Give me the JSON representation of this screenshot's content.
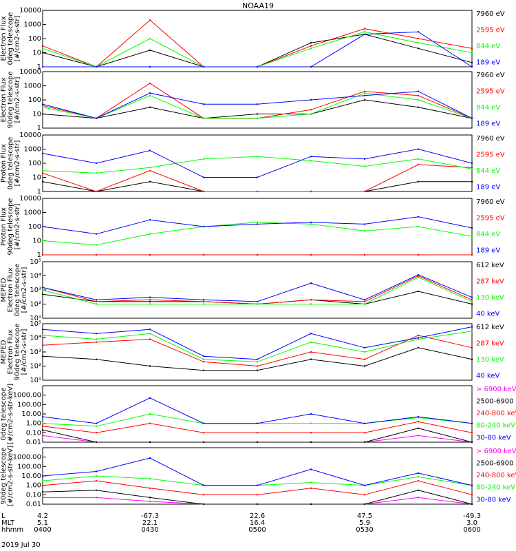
{
  "title": "NOAA19",
  "colors": {
    "black": "#000000",
    "red": "#ff0000",
    "green": "#00ff00",
    "blue": "#0000ff",
    "magenta": "#ff00ff"
  },
  "chart_data": [
    {
      "type": "line",
      "ylabel": [
        "Electron Flux",
        "0deg telescope",
        "[#/cm2-s-str]"
      ],
      "yscale": "log",
      "ylim": [
        1,
        10000
      ],
      "yticks": [
        {
          "v": 1,
          "t": "1"
        },
        {
          "v": 10,
          "t": "10"
        },
        {
          "v": 100,
          "t": "100"
        },
        {
          "v": 1000,
          "t": "1000"
        },
        {
          "v": 10000,
          "t": "10000"
        }
      ],
      "x": [
        "04:00",
        "04:15",
        "04:30",
        "04:45",
        "05:00",
        "05:15",
        "05:30",
        "05:45",
        "06:00"
      ],
      "series": [
        {
          "name": "7960 eV",
          "color": "#000000",
          "values": [
            10,
            1,
            15,
            1,
            1,
            50,
            200,
            20,
            2
          ]
        },
        {
          "name": "2595 eV",
          "color": "#ff0000",
          "values": [
            30,
            1,
            2000,
            1,
            1,
            30,
            500,
            100,
            20
          ]
        },
        {
          "name": "844 eV",
          "color": "#00ff00",
          "values": [
            20,
            1,
            100,
            1,
            1,
            20,
            300,
            50,
            10
          ]
        },
        {
          "name": "189 eV",
          "color": "#0000ff",
          "values": [
            1,
            1,
            1,
            1,
            1,
            1,
            200,
            300,
            1
          ]
        }
      ]
    },
    {
      "type": "line",
      "ylabel": [
        "Electron Flux",
        "90deg telescope",
        "[#/cm2-s-str]"
      ],
      "yscale": "log",
      "ylim": [
        1,
        10000
      ],
      "yticks": [
        {
          "v": 1,
          "t": "1"
        },
        {
          "v": 10,
          "t": "10"
        },
        {
          "v": 100,
          "t": "100"
        },
        {
          "v": 1000,
          "t": "1000"
        },
        {
          "v": 10000,
          "t": "10000"
        }
      ],
      "x": [
        "04:00",
        "04:15",
        "04:30",
        "04:45",
        "05:00",
        "05:15",
        "05:30",
        "05:45",
        "06:00"
      ],
      "series": [
        {
          "name": "7960 eV",
          "color": "#000000",
          "values": [
            10,
            5,
            30,
            5,
            10,
            10,
            100,
            30,
            5
          ]
        },
        {
          "name": "2595 eV",
          "color": "#ff0000",
          "values": [
            40,
            5,
            1500,
            5,
            5,
            20,
            400,
            200,
            5
          ]
        },
        {
          "name": "844 eV",
          "color": "#00ff00",
          "values": [
            30,
            5,
            200,
            5,
            5,
            10,
            300,
            100,
            5
          ]
        },
        {
          "name": "189 eV",
          "color": "#0000ff",
          "values": [
            50,
            5,
            300,
            50,
            50,
            100,
            200,
            400,
            5
          ]
        }
      ]
    },
    {
      "type": "line",
      "ylabel": [
        "Proton Flux",
        "0deg telescope",
        "[#/cm2-s-str]"
      ],
      "yscale": "log",
      "ylim": [
        1,
        10000
      ],
      "yticks": [
        {
          "v": 1,
          "t": "1"
        },
        {
          "v": 10,
          "t": "10"
        },
        {
          "v": 100,
          "t": "100"
        },
        {
          "v": 1000,
          "t": "1000"
        },
        {
          "v": 10000,
          "t": "10000"
        }
      ],
      "x": [
        "04:00",
        "04:15",
        "04:30",
        "04:45",
        "05:00",
        "05:15",
        "05:30",
        "05:45",
        "06:00"
      ],
      "series": [
        {
          "name": "7960 eV",
          "color": "#000000",
          "values": [
            5,
            1,
            5,
            1,
            1,
            1,
            1,
            5,
            5
          ]
        },
        {
          "name": "2595 eV",
          "color": "#ff0000",
          "values": [
            20,
            1,
            30,
            1,
            1,
            1,
            1,
            80,
            50
          ]
        },
        {
          "name": "844 eV",
          "color": "#00ff00",
          "values": [
            30,
            20,
            50,
            200,
            300,
            150,
            60,
            200,
            40
          ]
        },
        {
          "name": "189 eV",
          "color": "#0000ff",
          "values": [
            500,
            100,
            800,
            10,
            10,
            300,
            200,
            1000,
            100
          ]
        }
      ]
    },
    {
      "type": "line",
      "ylabel": [
        "Proton Flux",
        "90deg telescope",
        "[#/cm2-s-str]"
      ],
      "yscale": "log",
      "ylim": [
        1,
        10000
      ],
      "yticks": [
        {
          "v": 1,
          "t": "1"
        },
        {
          "v": 10,
          "t": "10"
        },
        {
          "v": 100,
          "t": "100"
        },
        {
          "v": 1000,
          "t": "1000"
        },
        {
          "v": 10000,
          "t": "10000"
        }
      ],
      "x": [
        "04:00",
        "04:15",
        "04:30",
        "04:45",
        "05:00",
        "05:15",
        "05:30",
        "05:45",
        "06:00"
      ],
      "series": [
        {
          "name": "7960 eV",
          "color": "#000000",
          "values": [
            1,
            1,
            1,
            1,
            1,
            1,
            1,
            1,
            1
          ]
        },
        {
          "name": "2595 eV",
          "color": "#ff0000",
          "values": [
            1,
            1,
            1,
            1,
            1,
            1,
            1,
            1,
            1
          ]
        },
        {
          "name": "844 eV",
          "color": "#00ff00",
          "values": [
            10,
            5,
            30,
            100,
            200,
            150,
            50,
            100,
            20
          ]
        },
        {
          "name": "189 eV",
          "color": "#0000ff",
          "values": [
            100,
            30,
            300,
            100,
            150,
            200,
            150,
            500,
            80
          ]
        }
      ]
    },
    {
      "type": "line",
      "ylabel": [
        "MEPED",
        "Electron Flux",
        "0deg telescope",
        "[#/cm2-s-str]"
      ],
      "yscale": "log",
      "ylim": [
        10,
        100000
      ],
      "yticks": [
        {
          "v": 10,
          "t": "10¹"
        },
        {
          "v": 100,
          "t": "10²"
        },
        {
          "v": 1000,
          "t": "10³"
        },
        {
          "v": 10000,
          "t": "10⁴"
        },
        {
          "v": 100000,
          "t": "10⁵"
        }
      ],
      "x": [
        "04:00",
        "04:15",
        "04:30",
        "04:45",
        "05:00",
        "05:15",
        "05:30",
        "05:45",
        "06:00"
      ],
      "series": [
        {
          "name": "612 keV",
          "color": "#000000",
          "values": [
            500,
            150,
            150,
            150,
            100,
            200,
            100,
            800,
            100
          ]
        },
        {
          "name": "287 keV",
          "color": "#ff0000",
          "values": [
            1500,
            150,
            200,
            150,
            100,
            200,
            150,
            10000,
            200
          ]
        },
        {
          "name": "130 keV",
          "color": "#00ff00",
          "values": [
            1000,
            100,
            100,
            100,
            100,
            100,
            100,
            8000,
            150
          ]
        },
        {
          "name": "40 keV",
          "color": "#0000ff",
          "values": [
            1500,
            200,
            300,
            200,
            150,
            3000,
            200,
            12000,
            300
          ]
        }
      ]
    },
    {
      "type": "line",
      "ylabel": [
        "MEPED",
        "Electron Flux",
        "90deg telescope",
        "[#/cm2-s-str]"
      ],
      "yscale": "log",
      "ylim": [
        10,
        100000
      ],
      "yticks": [
        {
          "v": 10,
          "t": "10¹"
        },
        {
          "v": 100,
          "t": "10²"
        },
        {
          "v": 1000,
          "t": "10³"
        },
        {
          "v": 10000,
          "t": "10⁴"
        },
        {
          "v": 100000,
          "t": "10⁵"
        }
      ],
      "x": [
        "04:00",
        "04:15",
        "04:30",
        "04:45",
        "05:00",
        "05:15",
        "05:30",
        "05:45",
        "06:00"
      ],
      "series": [
        {
          "name": "612 keV",
          "color": "#000000",
          "values": [
            500,
            300,
            100,
            50,
            50,
            300,
            100,
            2000,
            300
          ]
        },
        {
          "name": "287 keV",
          "color": "#ff0000",
          "values": [
            3000,
            5000,
            8000,
            200,
            100,
            1000,
            300,
            15000,
            2000
          ]
        },
        {
          "name": "130 keV",
          "color": "#00ff00",
          "values": [
            15000,
            8000,
            20000,
            300,
            200,
            5000,
            1000,
            8000,
            30000
          ]
        },
        {
          "name": "40 keV",
          "color": "#0000ff",
          "values": [
            40000,
            20000,
            40000,
            500,
            300,
            20000,
            2000,
            10000,
            60000
          ]
        }
      ]
    },
    {
      "type": "line",
      "ylabel": [
        "0deg telescope",
        "[#/cm2-s-str-keV]"
      ],
      "yscale": "log",
      "ylim": [
        0.01,
        10000
      ],
      "yticks": [
        {
          "v": 0.01,
          "t": "0.01"
        },
        {
          "v": 0.1,
          "t": "0.10"
        },
        {
          "v": 1,
          "t": "1.00"
        },
        {
          "v": 10,
          "t": "10.00"
        },
        {
          "v": 100,
          "t": "100.00"
        },
        {
          "v": 1000,
          "t": "1000.00"
        }
      ],
      "x": [
        "04:00",
        "04:15",
        "04:30",
        "04:45",
        "05:00",
        "05:15",
        "05:30",
        "05:45",
        "06:00"
      ],
      "series": [
        {
          "name": "> 6900 keV",
          "color": "#ff00ff",
          "values": [
            0.05,
            0.01,
            0.01,
            0.01,
            0.01,
            0.01,
            0.01,
            0.05,
            0.01
          ]
        },
        {
          "name": "2500-6900",
          "color": "#000000",
          "values": [
            0.2,
            0.01,
            0.01,
            0.01,
            0.01,
            0.01,
            0.01,
            0.3,
            0.01
          ]
        },
        {
          "name": "240-800 keV",
          "color": "#ff0000",
          "values": [
            0.5,
            0.1,
            1,
            0.1,
            0.1,
            0.1,
            0.1,
            1.5,
            0.1
          ]
        },
        {
          "name": "80-240 keV",
          "color": "#00ff00",
          "values": [
            1,
            0.5,
            10,
            1,
            1,
            1,
            1,
            4,
            1
          ]
        },
        {
          "name": "30-80 keV",
          "color": "#0000ff",
          "values": [
            5,
            1,
            500,
            1,
            1,
            10,
            1,
            5,
            1
          ]
        }
      ]
    },
    {
      "type": "line",
      "ylabel": [
        "90deg telescope",
        "[#/cm2-s-str-keV]"
      ],
      "yscale": "log",
      "ylim": [
        0.01,
        10000
      ],
      "yticks": [
        {
          "v": 0.01,
          "t": "0.01"
        },
        {
          "v": 0.1,
          "t": "0.10"
        },
        {
          "v": 1,
          "t": "1.00"
        },
        {
          "v": 10,
          "t": "10.00"
        },
        {
          "v": 100,
          "t": "100.00"
        },
        {
          "v": 1000,
          "t": "1000.00"
        }
      ],
      "x": [
        "04:00",
        "04:15",
        "04:30",
        "04:45",
        "05:00",
        "05:15",
        "05:30",
        "05:45",
        "06:00"
      ],
      "series": [
        {
          "name": "> 6900 keV",
          "color": "#ff00ff",
          "values": [
            0.05,
            0.05,
            0.02,
            0.01,
            0.01,
            0.01,
            0.01,
            0.05,
            0.01
          ]
        },
        {
          "name": "2500-6900",
          "color": "#000000",
          "values": [
            0.2,
            0.3,
            0.05,
            0.01,
            0.01,
            0.01,
            0.01,
            0.3,
            0.01
          ]
        },
        {
          "name": "240-800 keV",
          "color": "#ff0000",
          "values": [
            1,
            3,
            0.5,
            0.1,
            0.1,
            0.5,
            0.1,
            3,
            0.1
          ]
        },
        {
          "name": "80-240 keV",
          "color": "#00ff00",
          "values": [
            3,
            10,
            5,
            1,
            1,
            2,
            1,
            8,
            1
          ]
        },
        {
          "name": "30-80 keV",
          "color": "#0000ff",
          "values": [
            10,
            30,
            800,
            1,
            1,
            50,
            1,
            20,
            1
          ]
        }
      ]
    }
  ],
  "xaxis": {
    "rows": [
      {
        "label": "L",
        "values": [
          "4.2",
          "-67.3",
          "22.6",
          "47.5",
          "-49.3"
        ]
      },
      {
        "label": "MLT",
        "values": [
          "5.1",
          "22.1",
          "16.4",
          "5.9",
          "3.0"
        ]
      },
      {
        "label": "hhmm",
        "values": [
          "0400",
          "0430",
          "0500",
          "0530",
          "0600"
        ]
      }
    ],
    "date": "2019 Jul 30"
  }
}
